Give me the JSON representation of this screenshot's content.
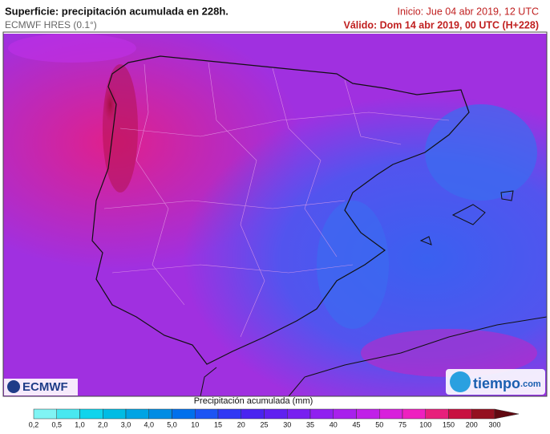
{
  "header": {
    "title": "Superficie: precipitación acumulada en 228h.",
    "model": "ECMWF HRES (0.1°)",
    "init": "Inicio: Jue 04 abr 2019, 12 UTC",
    "valid": "Válido: Dom 14 abr 2019, 00 UTC (H+228)"
  },
  "logos": {
    "left": "ECMWF",
    "right": "tiempo",
    "right_suffix": ".com"
  },
  "colorbar": {
    "title": "Precipitación acumulada (mm)",
    "levels": [
      {
        "label": "0,2",
        "color": "#80f4f4"
      },
      {
        "label": "0,5",
        "color": "#48e8f0"
      },
      {
        "label": "1,0",
        "color": "#10d4ec"
      },
      {
        "label": "2,0",
        "color": "#00bce4"
      },
      {
        "label": "3,0",
        "color": "#00a4e4"
      },
      {
        "label": "4,0",
        "color": "#008ce4"
      },
      {
        "label": "5,0",
        "color": "#0070ec"
      },
      {
        "label": "10",
        "color": "#1c54f4"
      },
      {
        "label": "15",
        "color": "#3038f4"
      },
      {
        "label": "20",
        "color": "#4a24f0"
      },
      {
        "label": "25",
        "color": "#6020f0"
      },
      {
        "label": "30",
        "color": "#7820f0"
      },
      {
        "label": "35",
        "color": "#9020f0"
      },
      {
        "label": "40",
        "color": "#a820ec"
      },
      {
        "label": "45",
        "color": "#c020e8"
      },
      {
        "label": "50",
        "color": "#d820dc"
      },
      {
        "label": "75",
        "color": "#ee20c0"
      },
      {
        "label": "100",
        "color": "#e8207c"
      },
      {
        "label": "150",
        "color": "#c81040"
      },
      {
        "label": "200",
        "color": "#941020"
      },
      {
        "label": "300",
        "color": "#600810"
      }
    ]
  }
}
